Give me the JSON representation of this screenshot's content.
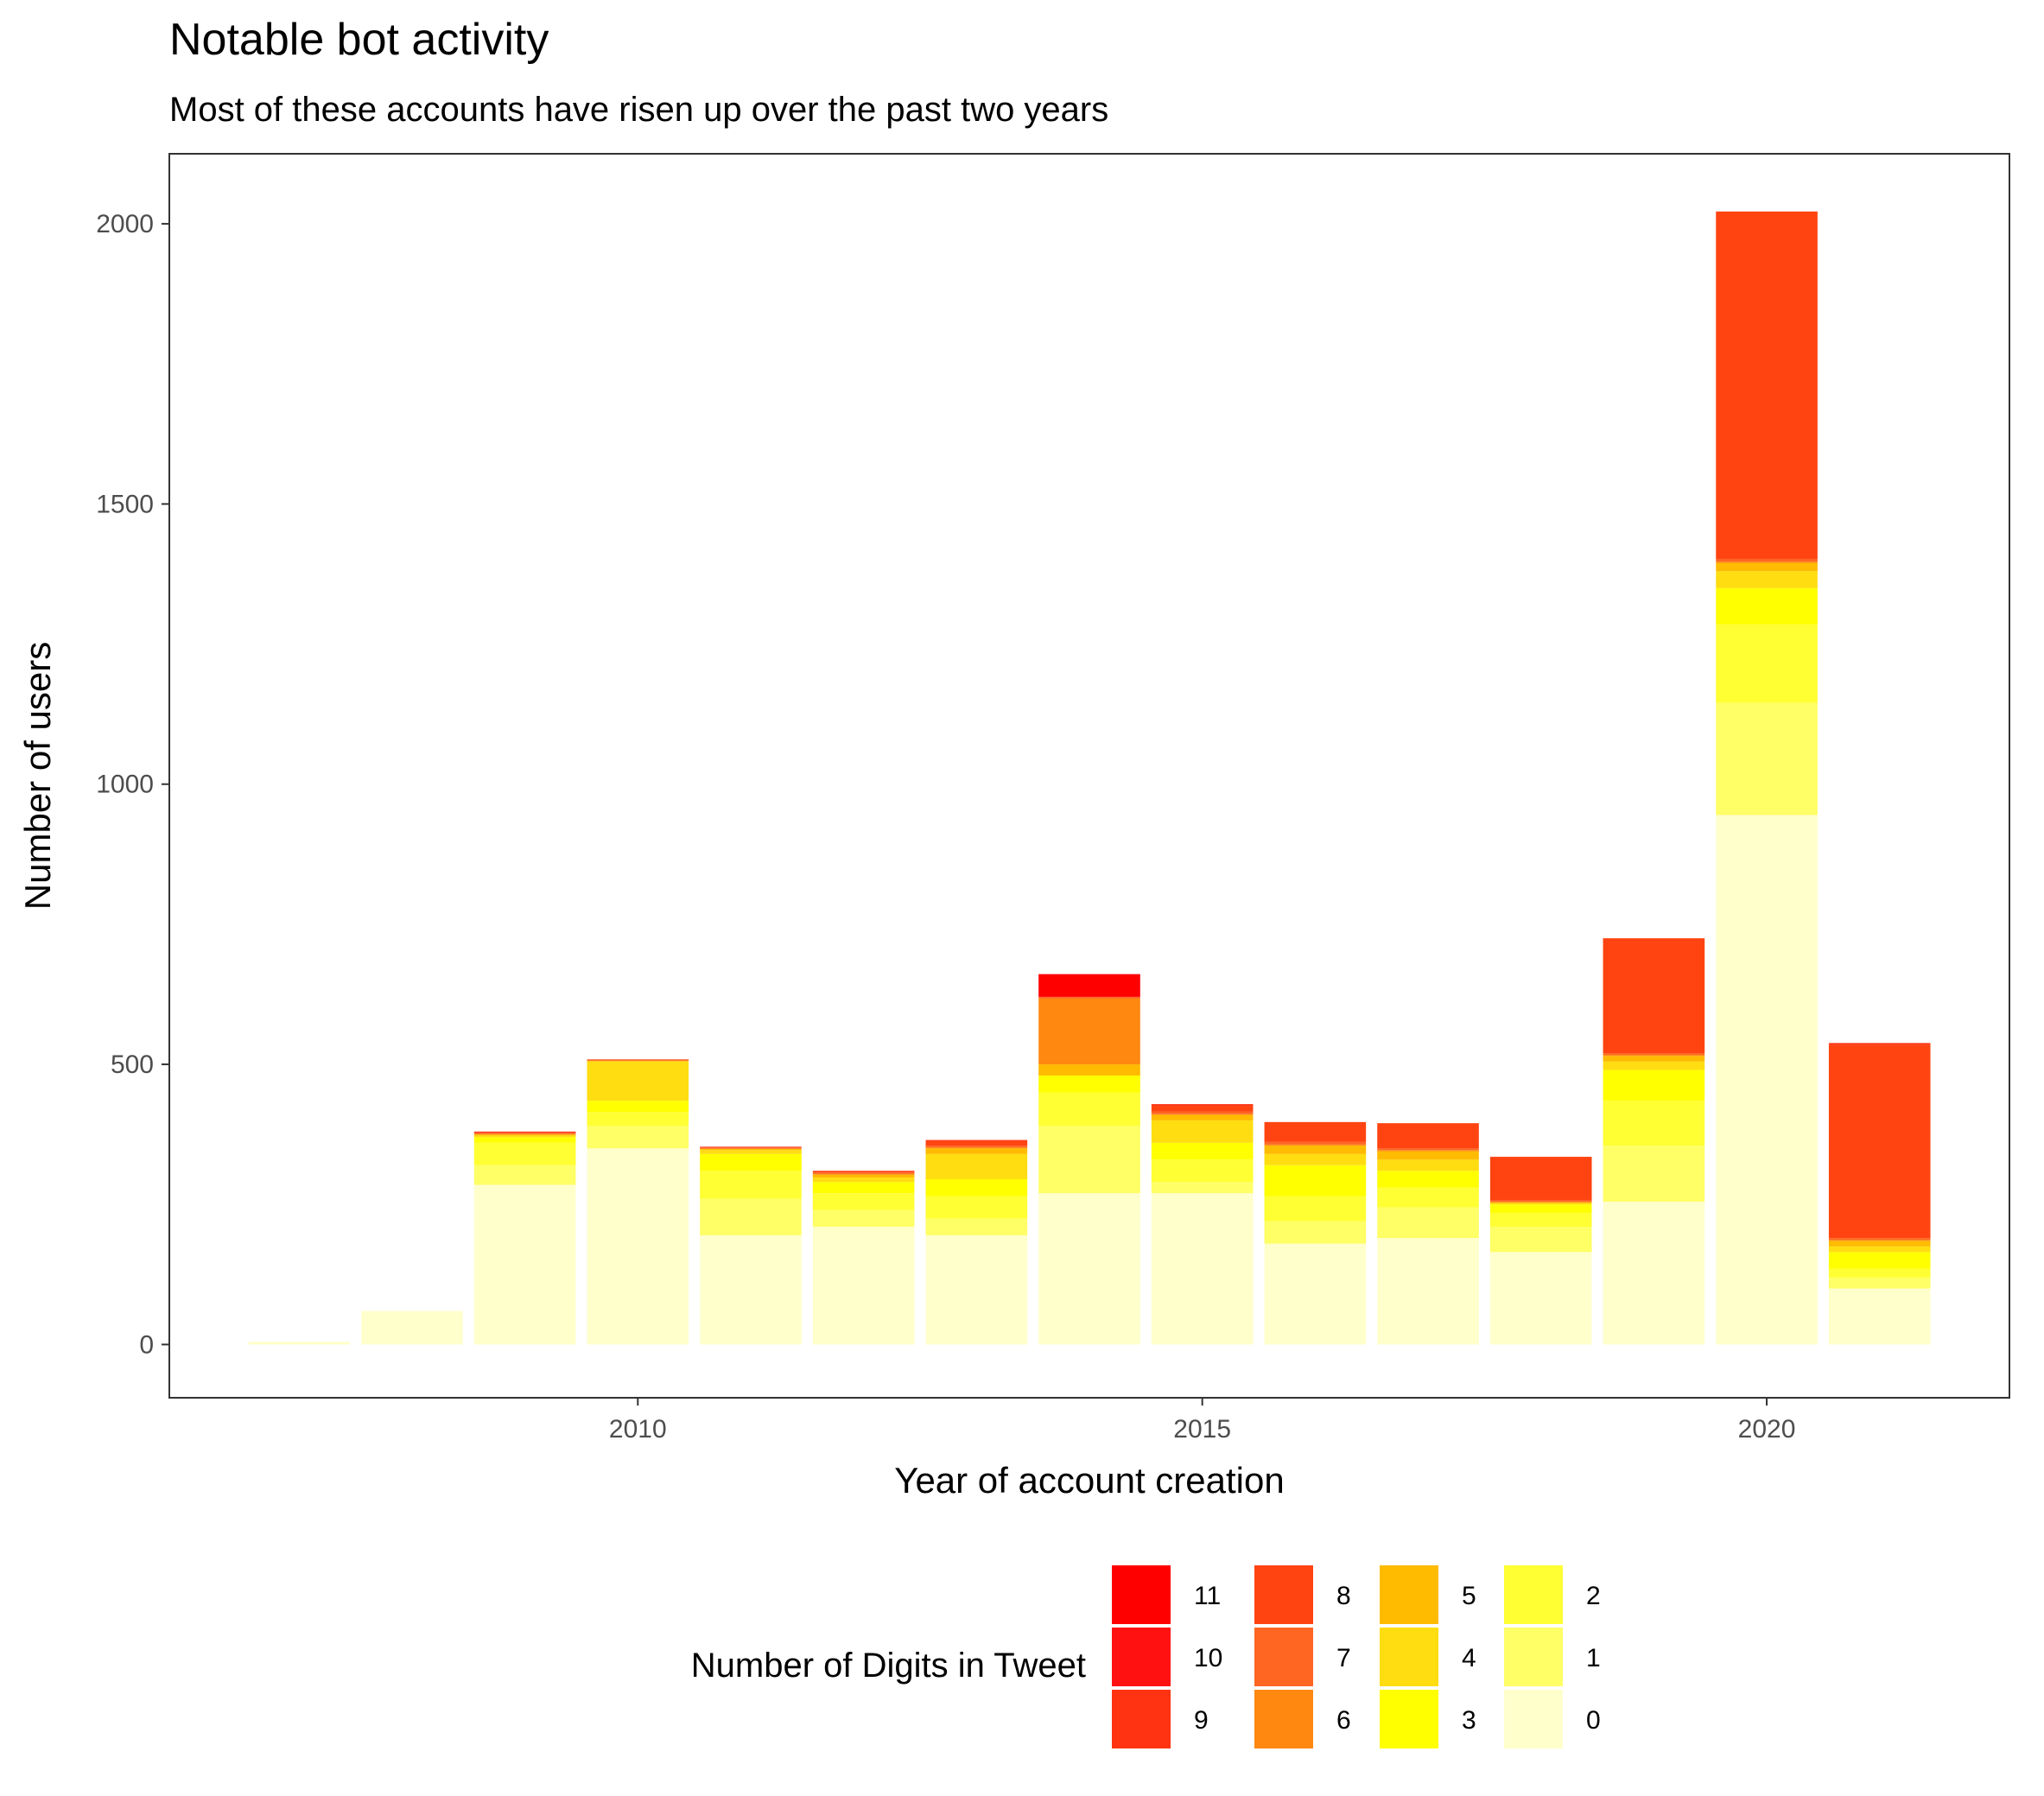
{
  "chart_data": {
    "type": "bar",
    "stacked": true,
    "title": "Notable bot activity",
    "subtitle": "Most of these accounts have risen up over the past two years",
    "xlabel": "Year of account creation",
    "ylabel": "Number of users",
    "x_ticks": [
      2010,
      2015,
      2020
    ],
    "y_ticks": [
      0,
      500,
      1000,
      1500,
      2000
    ],
    "xlim": [
      2005.85,
      2022.15
    ],
    "ylim": [
      -95,
      2125
    ],
    "grid": false,
    "legend": {
      "title": "Number of Digits in Tweet",
      "placement": "bottom",
      "columns": [
        [
          "11",
          "10",
          "9"
        ],
        [
          "8",
          "7",
          "6"
        ],
        [
          "5",
          "4",
          "3"
        ],
        [
          "2",
          "1",
          "0"
        ]
      ]
    },
    "categories": [
      2007,
      2008,
      2009,
      2010,
      2011,
      2012,
      2013,
      2014,
      2015,
      2016,
      2017,
      2018,
      2019,
      2020,
      2021
    ],
    "series": [
      {
        "name": "0",
        "color": "#FFFFCC",
        "values": [
          5,
          60,
          285,
          350,
          195,
          210,
          195,
          270,
          270,
          180,
          190,
          165,
          255,
          945,
          100
        ]
      },
      {
        "name": "1",
        "color": "#FFFF66",
        "values": [
          0,
          0,
          35,
          40,
          65,
          30,
          30,
          120,
          20,
          40,
          55,
          45,
          100,
          200,
          20
        ]
      },
      {
        "name": "2",
        "color": "#FFFF33",
        "values": [
          0,
          0,
          40,
          25,
          50,
          30,
          40,
          60,
          40,
          45,
          35,
          25,
          80,
          140,
          15
        ]
      },
      {
        "name": "3",
        "color": "#FFFF00",
        "values": [
          0,
          0,
          10,
          20,
          30,
          20,
          30,
          30,
          30,
          55,
          30,
          15,
          55,
          65,
          30
        ]
      },
      {
        "name": "4",
        "color": "#FFDD11",
        "values": [
          0,
          0,
          3,
          70,
          7,
          8,
          45,
          0,
          40,
          20,
          20,
          2,
          15,
          30,
          10
        ]
      },
      {
        "name": "5",
        "color": "#FFBB00",
        "values": [
          0,
          0,
          2,
          1,
          2,
          5,
          10,
          20,
          10,
          15,
          15,
          2,
          10,
          15,
          10
        ]
      },
      {
        "name": "6",
        "color": "#FF8811",
        "values": [
          0,
          0,
          1,
          1,
          1,
          2,
          2,
          118,
          1,
          2,
          2,
          1,
          2,
          2,
          2
        ]
      },
      {
        "name": "7",
        "color": "#FF6622",
        "values": [
          0,
          0,
          1,
          1,
          1,
          2,
          3,
          2,
          5,
          5,
          3,
          2,
          3,
          5,
          3
        ]
      },
      {
        "name": "8",
        "color": "#FF4411",
        "values": [
          0,
          0,
          1,
          1,
          1,
          2,
          8,
          0,
          10,
          35,
          45,
          78,
          205,
          620,
          345
        ]
      },
      {
        "name": "9",
        "color": "#FF3311",
        "values": [
          0,
          0,
          2,
          0,
          1,
          1,
          2,
          0,
          3,
          0,
          0,
          0,
          0,
          0,
          3
        ]
      },
      {
        "name": "10",
        "color": "#FF1111",
        "values": [
          0,
          0,
          0,
          0,
          0,
          0,
          0,
          1,
          0,
          0,
          0,
          0,
          0,
          0,
          0
        ]
      },
      {
        "name": "11",
        "color": "#FF0000",
        "values": [
          0,
          0,
          0,
          0,
          0,
          0,
          0,
          40,
          0,
          0,
          0,
          0,
          0,
          0,
          0
        ]
      }
    ]
  }
}
